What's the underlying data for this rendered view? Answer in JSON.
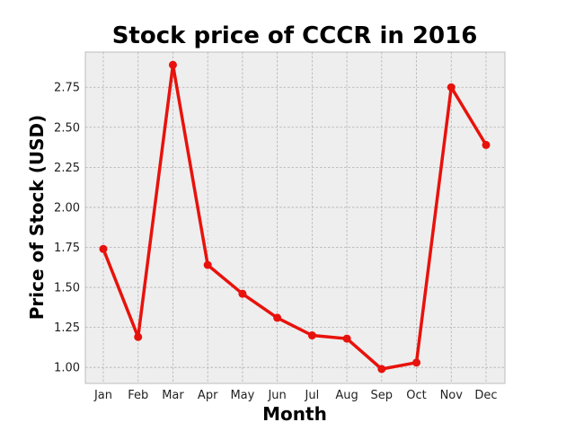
{
  "chart_data": {
    "type": "line",
    "title": "Stock price of CCCR in 2016",
    "xlabel": "Month",
    "ylabel": "Price of Stock (USD)",
    "categories": [
      "Jan",
      "Feb",
      "Mar",
      "Apr",
      "May",
      "Jun",
      "Jul",
      "Aug",
      "Sep",
      "Oct",
      "Nov",
      "Dec"
    ],
    "series": [
      {
        "values": [
          1.74,
          1.19,
          2.89,
          1.64,
          1.46,
          1.31,
          1.2,
          1.18,
          0.99,
          1.03,
          2.75,
          2.39
        ]
      }
    ],
    "ylim": [
      0.9,
      2.97
    ],
    "yticks": [
      "1.00",
      "1.25",
      "1.50",
      "1.75",
      "2.00",
      "2.25",
      "2.50",
      "2.75"
    ],
    "grid": true,
    "colors": {
      "line": "#e8120c",
      "plot_background": "#eeeeee",
      "grid": "#b0b0b0",
      "frame": "#bcbcbc"
    }
  }
}
